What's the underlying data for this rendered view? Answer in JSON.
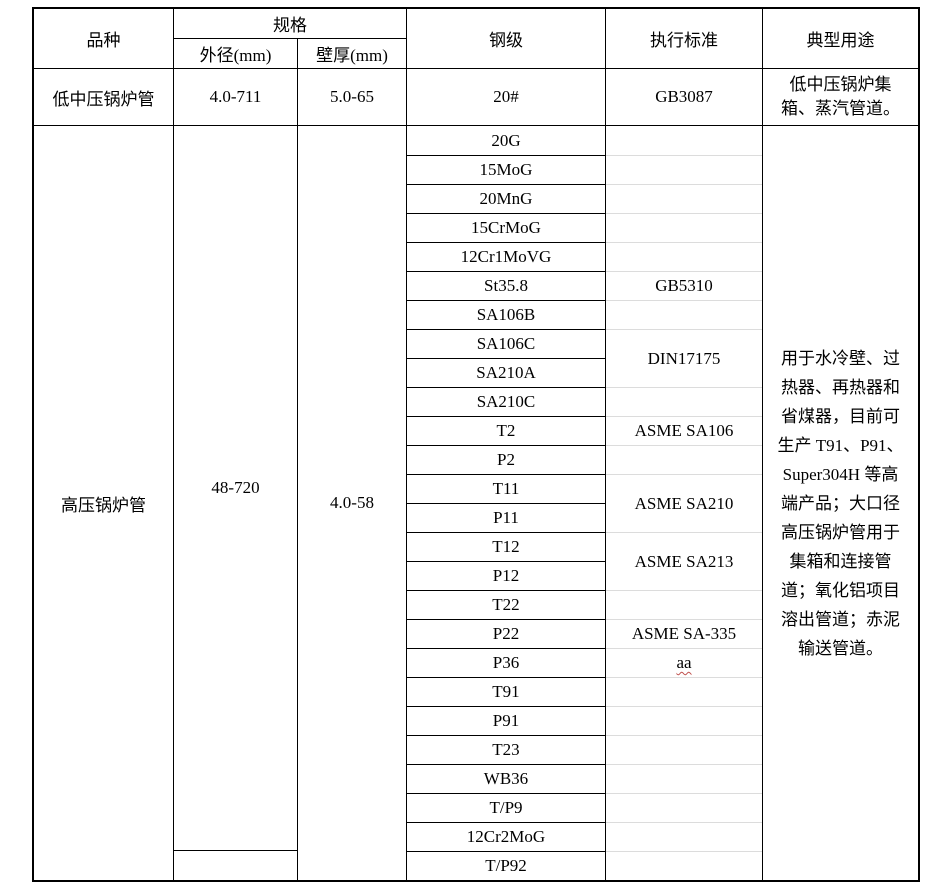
{
  "document": {
    "type": "boiler-tube-product-specification-table",
    "language": "zh-CN"
  },
  "colors": {
    "background": "#ffffff",
    "text": "#000000",
    "border": "#000000",
    "faint_grid_line": "#dcdcdc",
    "spellcheck_squiggle": "#c0504d"
  },
  "table": {
    "header": {
      "col_variety": "品种",
      "col_spec": "规格",
      "col_od": "外径(mm)",
      "col_wt": "壁厚(mm)",
      "col_grade": "钢级",
      "col_standard": "执行标准",
      "col_use": "典型用途"
    },
    "row_low_mid": {
      "variety": "低中压锅炉管",
      "od": "4.0-711",
      "wt": "5.0-65",
      "grade": "20#",
      "standard": "GB3087",
      "use_lines": [
        "低中压锅炉集",
        "箱、蒸汽管道。"
      ]
    },
    "row_high": {
      "variety": "高压锅炉管",
      "od": "48-720",
      "wt": "4.0-58",
      "grades": [
        "20G",
        "15MoG",
        "20MnG",
        "15CrMoG",
        "12Cr1MoVG",
        "St35.8",
        "SA106B",
        "SA106C",
        "SA210A",
        "SA210C",
        "T2",
        "P2",
        "T11",
        "P11",
        "T12",
        "P12",
        "T22",
        "P22",
        "P36",
        "T91",
        "P91",
        "T23",
        "WB36",
        "T/P9",
        "12Cr2MoG",
        "T/P92"
      ],
      "standards": [
        {
          "label": "",
          "span": 1
        },
        {
          "label": "",
          "span": 1
        },
        {
          "label": "",
          "span": 1
        },
        {
          "label": "",
          "span": 1
        },
        {
          "label": "",
          "span": 1
        },
        {
          "label": "GB5310",
          "span": 1
        },
        {
          "label": "",
          "span": 1
        },
        {
          "label": "DIN17175",
          "span": 2
        },
        {
          "label": "",
          "span": 1
        },
        {
          "label": "ASME SA106",
          "span": 1
        },
        {
          "label": "",
          "span": 1
        },
        {
          "label": "ASME SA210",
          "span": 2
        },
        {
          "label": "ASME SA213",
          "span": 2
        },
        {
          "label": "",
          "span": 1
        },
        {
          "label": "ASME SA-335",
          "span": 1
        },
        {
          "label": "aa",
          "span": 1,
          "squiggle": true
        },
        {
          "label": "",
          "span": 1
        },
        {
          "label": "",
          "span": 1
        },
        {
          "label": "",
          "span": 1
        },
        {
          "label": "",
          "span": 1
        },
        {
          "label": "",
          "span": 1
        },
        {
          "label": "",
          "span": 1
        },
        {
          "label": "",
          "span": 1
        }
      ],
      "use_lines": [
        "用于水冷壁、过",
        "热器、再热器和",
        "省煤器，目前可",
        "生产 T91、P91、",
        "Super304H 等高",
        "端产品；大口径",
        "高压锅炉管用于",
        "集箱和连接管",
        "道；氧化铝项目",
        "溶出管道；赤泥",
        "输送管道。"
      ]
    }
  }
}
